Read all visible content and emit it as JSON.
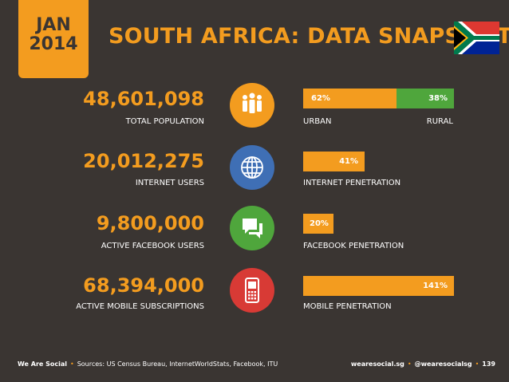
{
  "header": {
    "month": "JAN",
    "year": "2014",
    "title": "SOUTH AFRICA: DATA SNAPSHOT"
  },
  "stats": [
    {
      "value": "48,601,098",
      "label": "TOTAL POPULATION",
      "icon": "population-icon",
      "color": "#f39c1f"
    },
    {
      "value": "20,012,275",
      "label": "INTERNET USERS",
      "icon": "globe-icon",
      "color": "#3f6fb5"
    },
    {
      "value": "9,800,000",
      "label": "ACTIVE FACEBOOK USERS",
      "icon": "chat-bubbles-icon",
      "color": "#4fa63c"
    },
    {
      "value": "68,394,000",
      "label": "ACTIVE MOBILE SUBSCRIPTIONS",
      "icon": "mobile-phone-icon",
      "color": "#d83a35"
    }
  ],
  "bars": {
    "urban": {
      "percent": 62,
      "label_pct": "62%",
      "label": "URBAN"
    },
    "rural": {
      "percent": 38,
      "label_pct": "38%",
      "label": "RURAL"
    },
    "internet": {
      "percent": 41,
      "label_pct": "41%",
      "label": "INTERNET PENETRATION"
    },
    "facebook": {
      "percent": 20,
      "label_pct": "20%",
      "label": "FACEBOOK PENETRATION"
    },
    "mobile": {
      "percent": 141,
      "label_pct": "141%",
      "label": "MOBILE PENETRATION"
    }
  },
  "footer": {
    "brand": "We Are Social",
    "sources": "Sources: US Census Bureau, InternetWorldStats, Facebook, ITU",
    "site": "wearesocial.sg",
    "handle": "@wearesocialsg",
    "page": "139"
  },
  "colors": {
    "accent": "#f39c1f",
    "green": "#4fa63c",
    "background": "#3a3532"
  }
}
